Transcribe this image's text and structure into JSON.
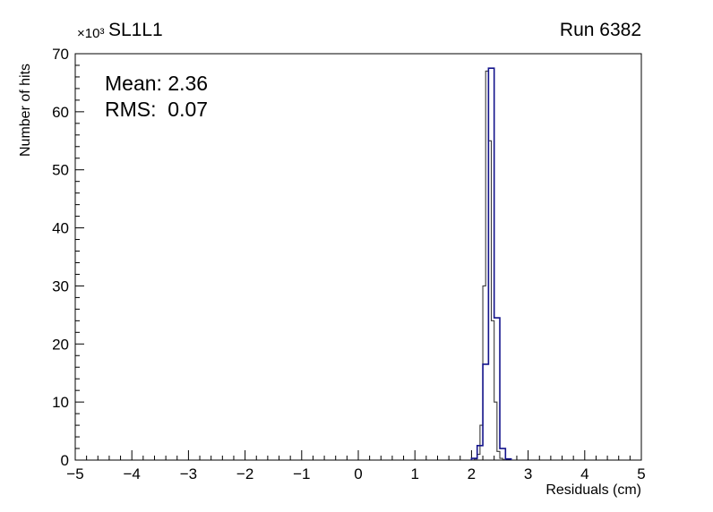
{
  "header": {
    "title": "SL1L1",
    "run_label": "Run 6382",
    "y_axis_multiplier": "×10³"
  },
  "stats": {
    "mean": "Mean: 2.36",
    "rms": "RMS:  0.07"
  },
  "chart_data": {
    "type": "histogram",
    "title": "SL1L1",
    "subtitle": "Run 6382",
    "xlabel": "Residuals (cm)",
    "ylabel": "Number of hits",
    "y_axis_multiplier": "×10³",
    "xlim": [
      -5,
      5
    ],
    "ylim": [
      0,
      70
    ],
    "grid": false,
    "legend": "none",
    "x_ticks": [
      -5,
      -4,
      -3,
      -2,
      -1,
      0,
      1,
      2,
      3,
      4,
      5
    ],
    "x_tick_labels": [
      "−5",
      "−4",
      "−3",
      "−2",
      "−1",
      "0",
      "1",
      "2",
      "3",
      "4",
      "5"
    ],
    "x_minor_step": 0.2,
    "y_ticks": [
      0,
      10,
      20,
      30,
      40,
      50,
      60,
      70
    ],
    "y_tick_labels": [
      "0",
      "10",
      "20",
      "30",
      "40",
      "50",
      "60",
      "70"
    ],
    "y_minor_step": 2,
    "annotations": [
      "Mean: 2.36",
      "RMS:  0.07"
    ],
    "y_units_note": "counts are in thousands (×10³ hits)",
    "series": [
      {
        "name": "residuals-histogram-black",
        "type": "step",
        "color": "#3a3a3a",
        "stroke_width": 1.1,
        "bin_edges": [
          2.05,
          2.1,
          2.15,
          2.2,
          2.25,
          2.3,
          2.35,
          2.4,
          2.45,
          2.5,
          2.55,
          2.6
        ],
        "counts": [
          0.2,
          1.0,
          6.0,
          30.0,
          67.0,
          55.0,
          24.0,
          10.0,
          1.5,
          0.3,
          0.1
        ]
      },
      {
        "name": "residuals-histogram-blue",
        "type": "step",
        "color": "#14148c",
        "stroke_width": 1.6,
        "bin_edges": [
          2.0,
          2.1,
          2.2,
          2.3,
          2.4,
          2.5,
          2.6,
          2.7
        ],
        "counts": [
          0.3,
          2.5,
          16.5,
          67.5,
          24.5,
          2.0,
          0.2
        ]
      }
    ]
  }
}
